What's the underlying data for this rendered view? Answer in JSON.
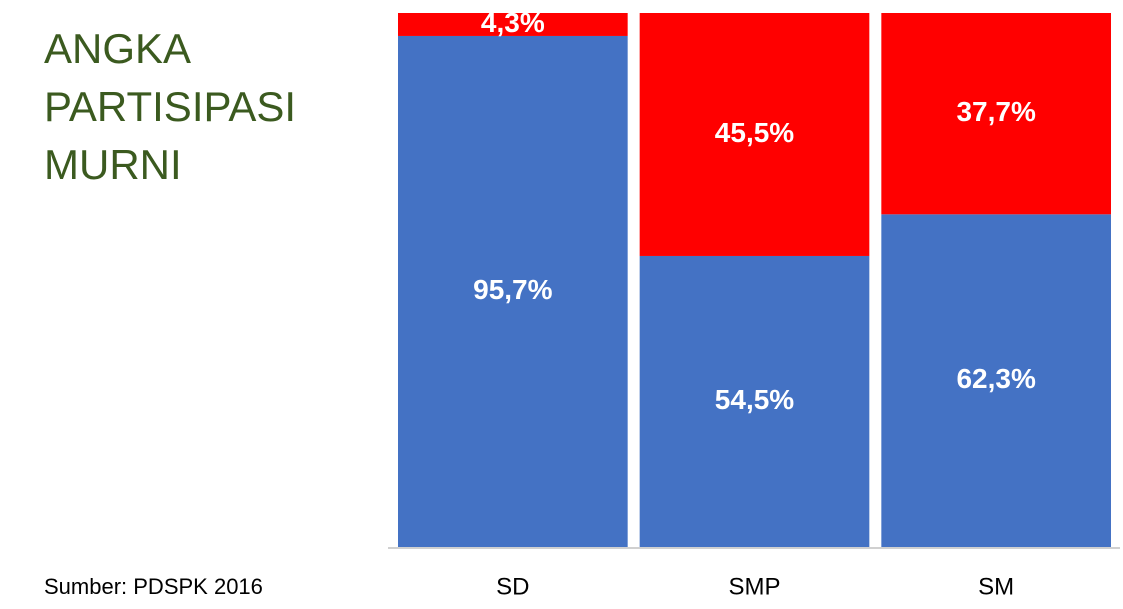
{
  "chart_data": {
    "type": "stacked-bar",
    "title": "ANGKA PARTISIPASI MURNI",
    "source": "Sumber: PDSPK 2016",
    "categories": [
      "SD",
      "SMP",
      "SM"
    ],
    "series": [
      {
        "color": "#4472c4",
        "values": [
          95.7,
          54.5,
          62.3
        ],
        "value_labels": [
          "95,7%",
          "54,5%",
          "62,3%"
        ]
      },
      {
        "color": "#ff0000",
        "values": [
          4.3,
          45.5,
          37.7
        ],
        "value_labels": [
          "4,3%",
          "45,5%",
          "37,7%"
        ]
      }
    ],
    "ylim": [
      0,
      100
    ]
  }
}
